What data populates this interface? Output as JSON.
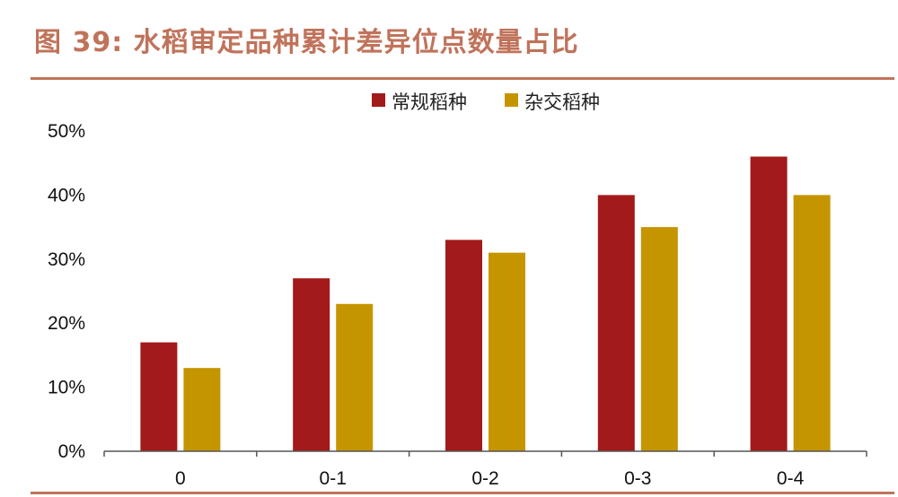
{
  "figure": {
    "title": "图 39:  水稻审定品种累计差异位点数量占比"
  },
  "colors": {
    "title": "#c0735a",
    "rule": "#c0735a",
    "axis": "#555555"
  },
  "chart_data": {
    "type": "bar",
    "title": "",
    "xlabel": "",
    "ylabel": "",
    "categories": [
      "0",
      "0-1",
      "0-2",
      "0-3",
      "0-4"
    ],
    "series": [
      {
        "name": "常规稻种",
        "color": "#a31a1a",
        "values": [
          17,
          27,
          33,
          40,
          46
        ]
      },
      {
        "name": "杂交稻种",
        "color": "#c59500",
        "values": [
          13,
          23,
          31,
          35,
          40
        ]
      }
    ],
    "ylim": [
      0,
      50
    ],
    "yticks": [
      0,
      10,
      20,
      30,
      40,
      50
    ],
    "ytick_format": "percent",
    "grid": false,
    "legend_position": "top-center"
  }
}
